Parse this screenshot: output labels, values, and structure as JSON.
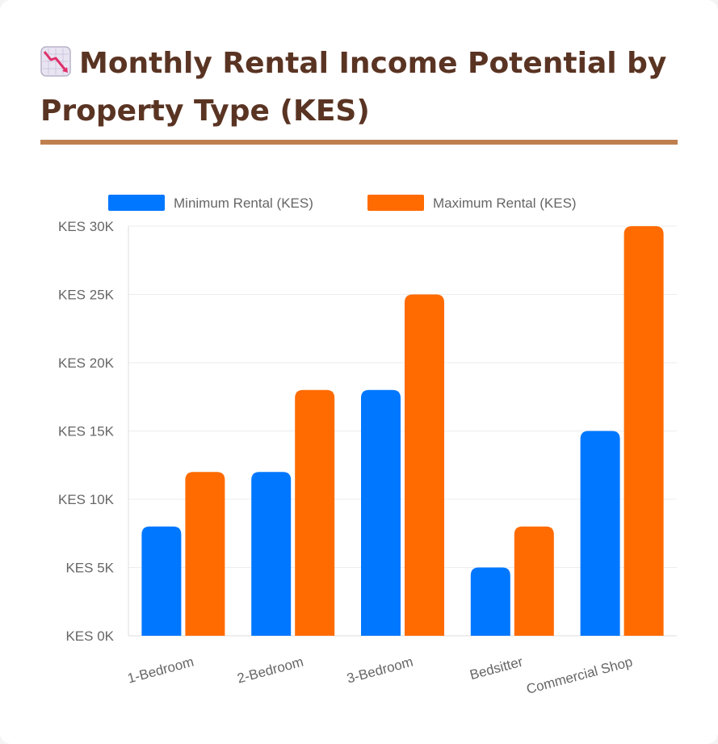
{
  "page": {
    "title": "Monthly Rental Income Potential by Property Type (KES)",
    "title_icon": "chart-decreasing-icon"
  },
  "colors": {
    "title": "#5a3423",
    "rule": "#bf8050",
    "min_series": "#0077ff",
    "max_series": "#ff6b00",
    "grid": "#ededed",
    "axis_text": "#666666"
  },
  "chart_data": {
    "type": "bar",
    "categories": [
      "1-Bedroom",
      "2-Bedroom",
      "3-Bedroom",
      "Bedsitter",
      "Commercial Shop"
    ],
    "series": [
      {
        "name": "Minimum Rental (KES)",
        "color": "#0077ff",
        "values": [
          8000,
          12000,
          18000,
          5000,
          15000
        ]
      },
      {
        "name": "Maximum Rental (KES)",
        "color": "#ff6b00",
        "values": [
          12000,
          18000,
          25000,
          8000,
          30000
        ]
      }
    ],
    "ylim": [
      0,
      30000
    ],
    "yticks": [
      "KES 0K",
      "KES 5K",
      "KES 10K",
      "KES 15K",
      "KES 20K",
      "KES 25K",
      "KES 30K"
    ],
    "legend": "top-center",
    "grid": true,
    "title": "",
    "xlabel": "",
    "ylabel": ""
  }
}
